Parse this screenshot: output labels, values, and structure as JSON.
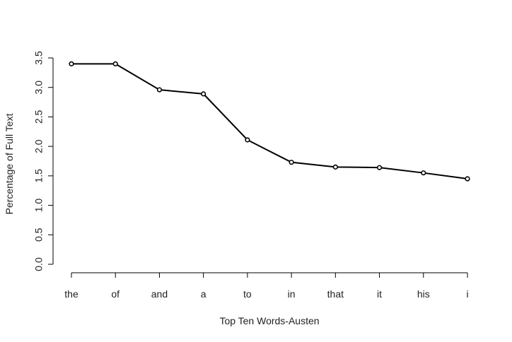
{
  "chart_data": {
    "type": "line",
    "title": "",
    "xlabel": "Top Ten Words-Austen",
    "ylabel": "Percentage of Full Text",
    "categories": [
      "the",
      "of",
      "and",
      "a",
      "to",
      "in",
      "that",
      "it",
      "his",
      "i"
    ],
    "series": [
      {
        "name": "",
        "values": [
          3.4,
          3.4,
          2.96,
          2.89,
          2.11,
          1.73,
          1.65,
          1.64,
          1.55,
          1.45
        ]
      }
    ],
    "ylim": [
      0,
      3.5
    ],
    "yticks": [
      "0.0",
      "0.5",
      "1.0",
      "1.5",
      "2.0",
      "2.5",
      "3.0",
      "3.5"
    ],
    "grid": false,
    "legend": "none",
    "line_color": "#000000",
    "marker": "open-circle"
  }
}
